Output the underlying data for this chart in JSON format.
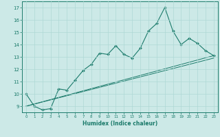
{
  "xlabel": "Humidex (Indice chaleur)",
  "x_values": [
    0,
    1,
    2,
    3,
    4,
    5,
    6,
    7,
    8,
    9,
    10,
    11,
    12,
    13,
    14,
    15,
    16,
    17,
    18,
    19,
    20,
    21,
    22,
    23
  ],
  "line1_y": [
    10.0,
    9.0,
    8.7,
    8.8,
    10.4,
    10.3,
    11.1,
    11.9,
    12.4,
    13.3,
    13.2,
    13.9,
    13.2,
    12.9,
    13.7,
    15.1,
    15.7,
    17.0,
    15.1,
    14.0,
    14.5,
    14.1,
    13.5,
    13.1
  ],
  "trend1": [
    9.0,
    13.1
  ],
  "trend2": [
    9.0,
    12.9
  ],
  "xlim": [
    -0.5,
    23.5
  ],
  "ylim": [
    8.5,
    17.5
  ],
  "yticks": [
    9,
    10,
    11,
    12,
    13,
    14,
    15,
    16,
    17
  ],
  "xticks": [
    0,
    1,
    2,
    3,
    4,
    5,
    6,
    7,
    8,
    9,
    10,
    11,
    12,
    13,
    14,
    15,
    16,
    17,
    18,
    19,
    20,
    21,
    22,
    23
  ],
  "line_color": "#1a7a6a",
  "bg_color": "#cce9e7",
  "grid_color": "#aed8d5"
}
